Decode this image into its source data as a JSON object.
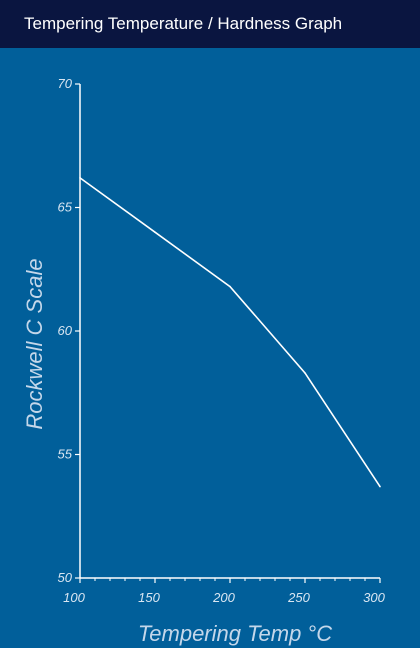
{
  "window": {
    "title": "Tempering Temperature / Hardness Graph"
  },
  "colors": {
    "title_bar_background": "#0a1540",
    "plot_background": "#015f9a",
    "line": "#ffffff",
    "axis": "#ffffff",
    "text": "#d9e6f2"
  },
  "chart_data": {
    "type": "line",
    "title": "",
    "xlabel": "Tempering Temp °C",
    "ylabel": "Rockwell C Scale",
    "x_ticks": [
      "100",
      "150",
      "200",
      "250",
      "300"
    ],
    "y_ticks": [
      "50",
      "55",
      "60",
      "65",
      "70"
    ],
    "xlim": [
      100,
      300
    ],
    "ylim": [
      50,
      70
    ],
    "grid": false,
    "x": [
      100,
      150,
      200,
      250,
      300
    ],
    "series": [
      {
        "values": [
          66.2,
          64.0,
          61.8,
          58.3,
          53.7
        ]
      }
    ]
  }
}
